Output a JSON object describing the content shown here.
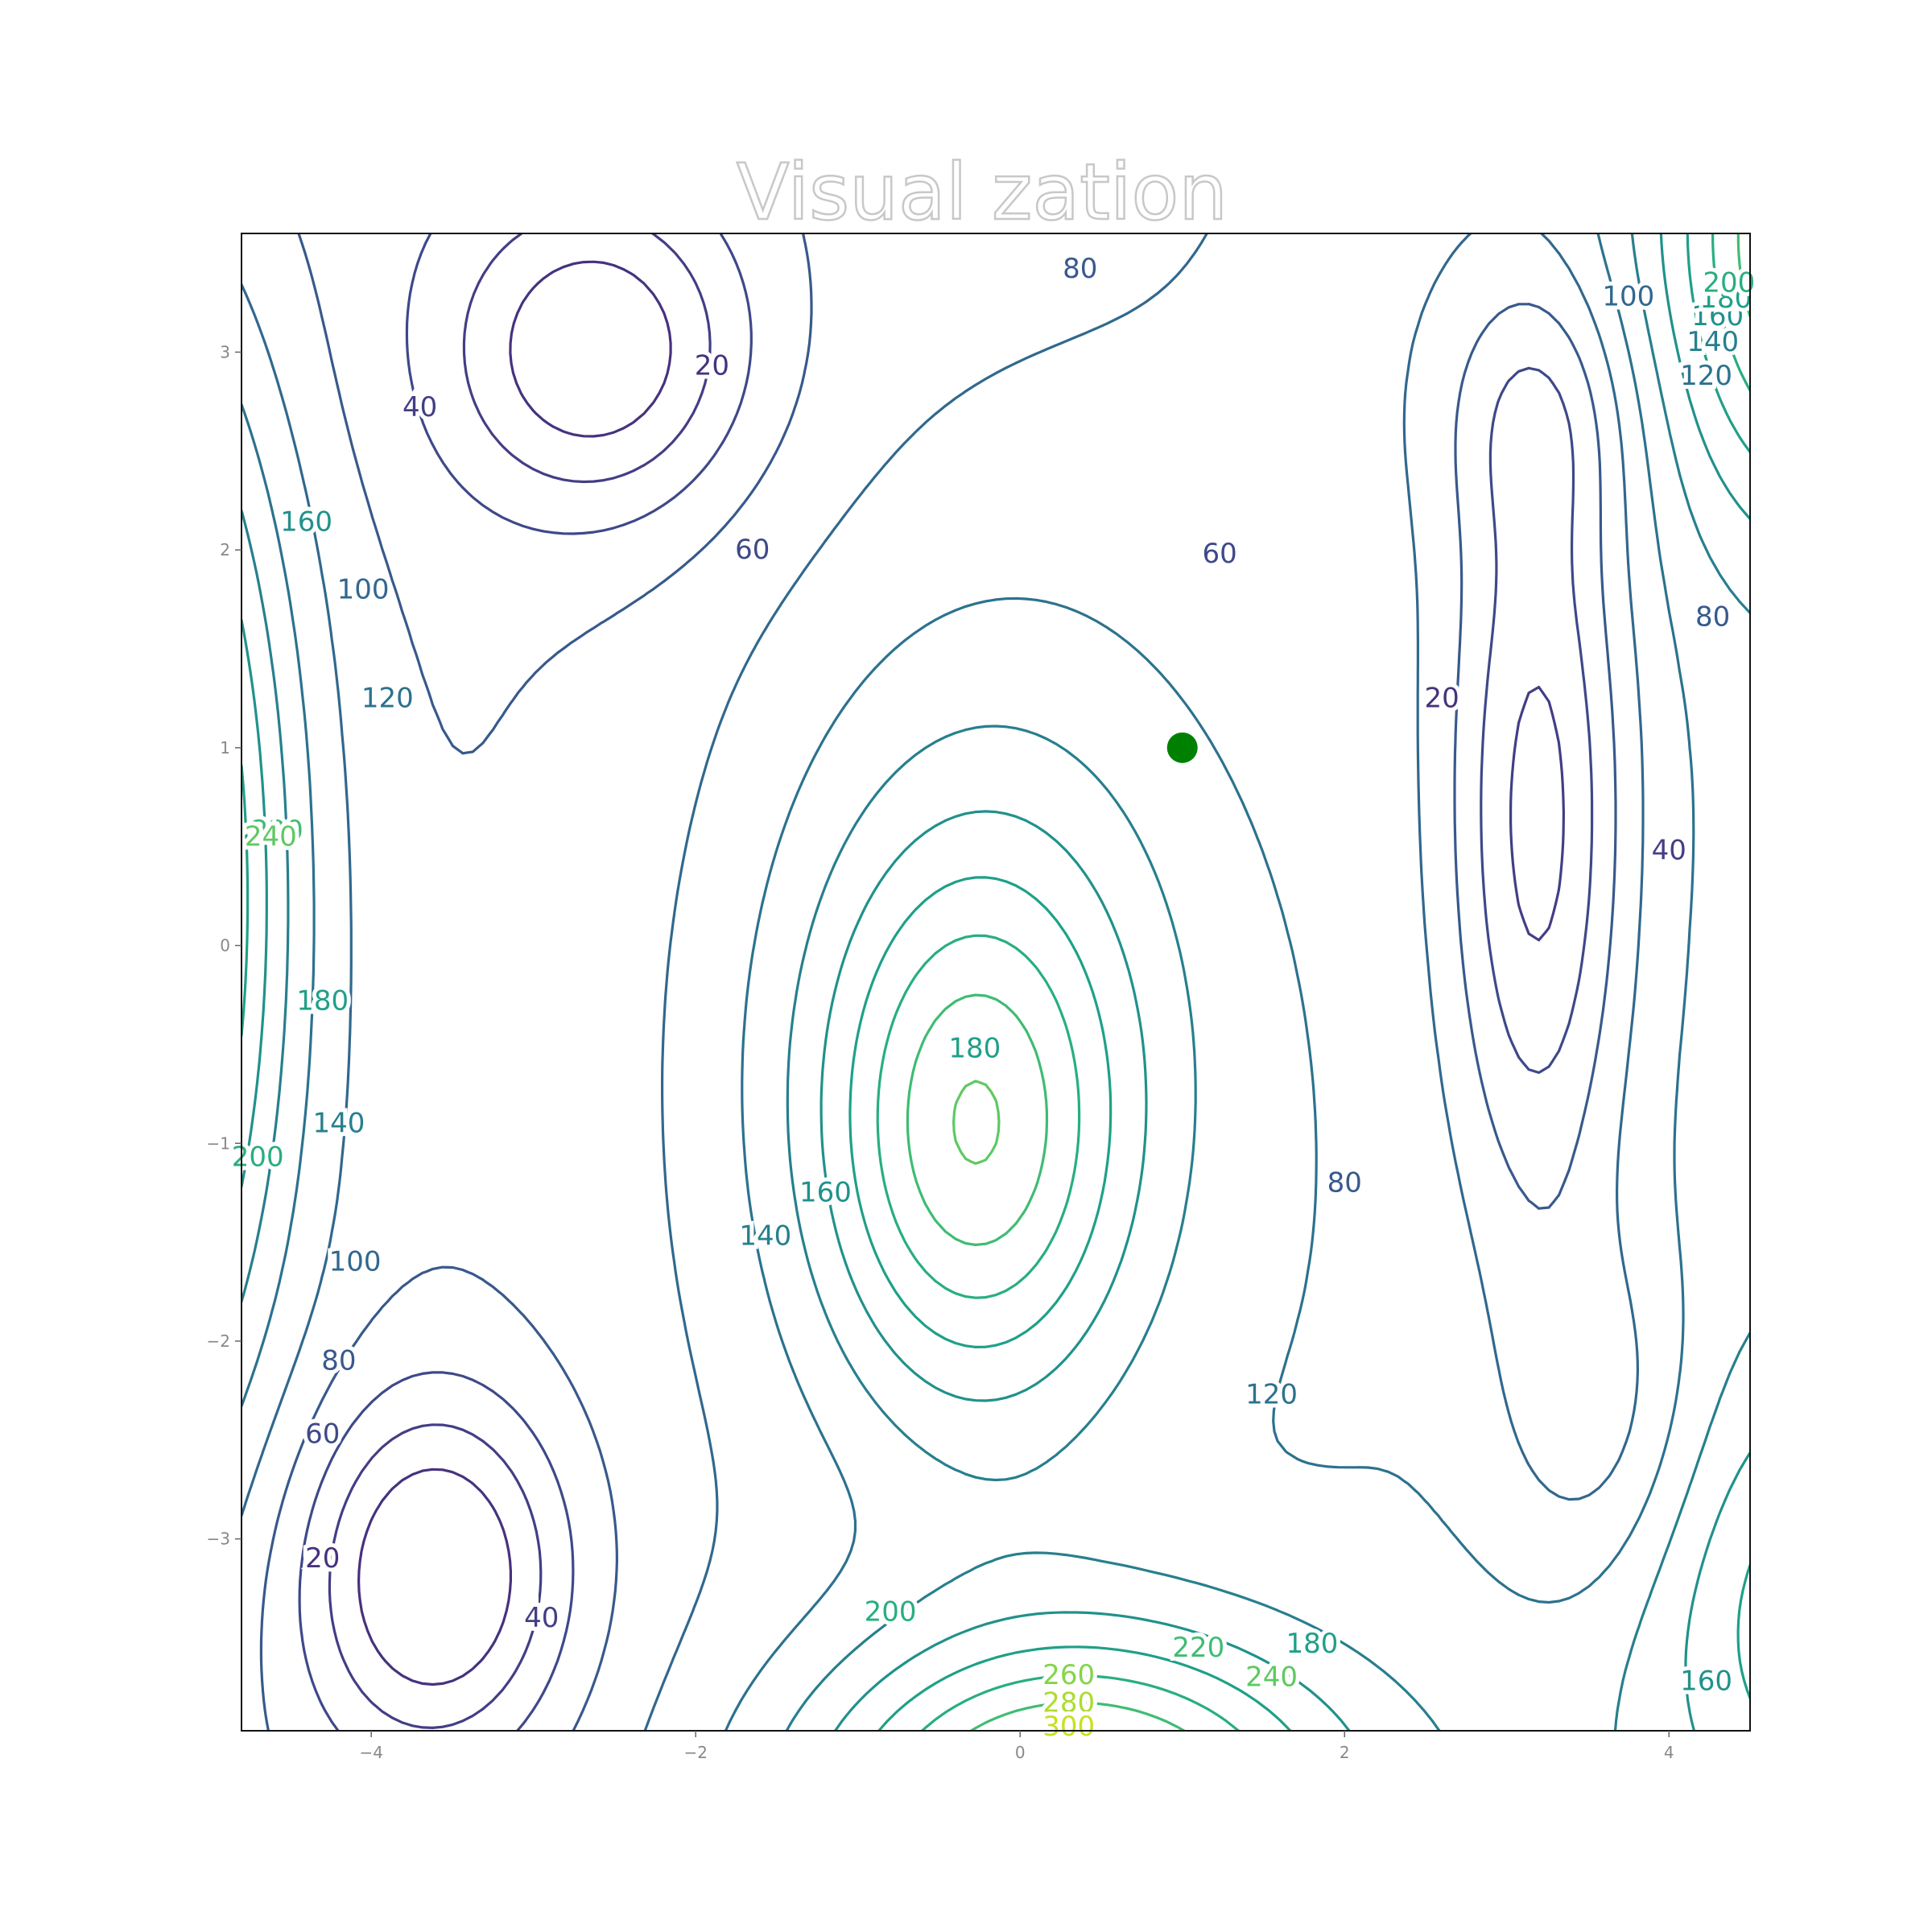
{
  "chart_data": {
    "type": "contour",
    "title": "Visual zation",
    "xlabel": "",
    "ylabel": "",
    "xlim": [
      -4.8,
      4.5
    ],
    "ylim": [
      -3.97,
      3.6
    ],
    "x_ticks": [
      -4,
      -2,
      0,
      2,
      4
    ],
    "y_ticks": [
      -3,
      -2,
      -1,
      0,
      1,
      2,
      3
    ],
    "x_tick_labels": [
      "−4",
      "−2",
      "0",
      "2",
      "4"
    ],
    "y_tick_labels": [
      "−3",
      "−2",
      "−1",
      "0",
      "1",
      "2",
      "3"
    ],
    "grid": false,
    "colormap": "viridis",
    "contour_levels": [
      20,
      40,
      60,
      80,
      100,
      120,
      140,
      160,
      180,
      200,
      220,
      240,
      260,
      280,
      300
    ],
    "level_colors": [
      "#46327e",
      "#433e85",
      "#3e4989",
      "#38598c",
      "#31688e",
      "#2c728e",
      "#277f8e",
      "#21918c",
      "#1fa088",
      "#28ae80",
      "#3fbc73",
      "#5ec962",
      "#84d44b",
      "#addc30",
      "#c8e020"
    ],
    "contour_labels": [
      {
        "text": "20",
        "x": -4.3,
        "y": -3.1
      },
      {
        "text": "40",
        "x": -2.95,
        "y": -3.4
      },
      {
        "text": "60",
        "x": -4.3,
        "y": -2.47
      },
      {
        "text": "80",
        "x": -4.2,
        "y": -2.1
      },
      {
        "text": "100",
        "x": -4.1,
        "y": -1.6
      },
      {
        "text": "140",
        "x": -4.2,
        "y": -0.9
      },
      {
        "text": "200",
        "x": -4.7,
        "y": -1.07
      },
      {
        "text": "180",
        "x": -4.3,
        "y": -0.28
      },
      {
        "text": "220",
        "x": -4.58,
        "y": 0.58
      },
      {
        "text": "240",
        "x": -4.62,
        "y": 0.55
      },
      {
        "text": "160",
        "x": -4.4,
        "y": 2.14
      },
      {
        "text": "100",
        "x": -4.05,
        "y": 1.8
      },
      {
        "text": "120",
        "x": -3.9,
        "y": 1.25
      },
      {
        "text": "40",
        "x": -3.7,
        "y": 2.72
      },
      {
        "text": "20",
        "x": -1.9,
        "y": 2.93
      },
      {
        "text": "60",
        "x": -1.65,
        "y": 2.0
      },
      {
        "text": "80",
        "x": 0.37,
        "y": 3.42
      },
      {
        "text": "60",
        "x": 1.23,
        "y": 1.98
      },
      {
        "text": "20",
        "x": 2.6,
        "y": 1.25
      },
      {
        "text": "40",
        "x": 4.0,
        "y": 0.48
      },
      {
        "text": "80",
        "x": 4.27,
        "y": 1.66
      },
      {
        "text": "100",
        "x": 3.75,
        "y": 3.28
      },
      {
        "text": "120",
        "x": 4.23,
        "y": 2.88
      },
      {
        "text": "140",
        "x": 4.27,
        "y": 3.05
      },
      {
        "text": "160",
        "x": 4.3,
        "y": 3.18
      },
      {
        "text": "180",
        "x": 4.35,
        "y": 3.27
      },
      {
        "text": "200",
        "x": 4.37,
        "y": 3.35
      },
      {
        "text": "180",
        "x": -0.28,
        "y": -0.52
      },
      {
        "text": "160",
        "x": -1.2,
        "y": -1.25
      },
      {
        "text": "140",
        "x": -1.57,
        "y": -1.47
      },
      {
        "text": "80",
        "x": 2.0,
        "y": -1.2
      },
      {
        "text": "120",
        "x": 1.55,
        "y": -2.27
      },
      {
        "text": "180",
        "x": 1.8,
        "y": -3.53
      },
      {
        "text": "200",
        "x": -0.8,
        "y": -3.37
      },
      {
        "text": "220",
        "x": 1.1,
        "y": -3.55
      },
      {
        "text": "240",
        "x": 1.55,
        "y": -3.7
      },
      {
        "text": "260",
        "x": 0.3,
        "y": -3.69
      },
      {
        "text": "280",
        "x": 0.3,
        "y": -3.83
      },
      {
        "text": "300",
        "x": 0.3,
        "y": -3.95
      },
      {
        "text": "160",
        "x": 4.23,
        "y": -3.72
      }
    ],
    "marker": {
      "x": 1.0,
      "y": 1.0,
      "color": "#008000"
    }
  }
}
